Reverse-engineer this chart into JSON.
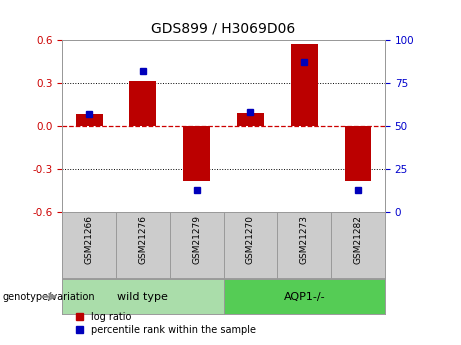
{
  "title": "GDS899 / H3069D06",
  "samples": [
    "GSM21266",
    "GSM21276",
    "GSM21279",
    "GSM21270",
    "GSM21273",
    "GSM21282"
  ],
  "log_ratios": [
    0.08,
    0.31,
    -0.38,
    0.09,
    0.57,
    -0.38
  ],
  "percentile_ranks": [
    57,
    82,
    13,
    58,
    87,
    13
  ],
  "ylim_left": [
    -0.6,
    0.6
  ],
  "ylim_right": [
    0,
    100
  ],
  "yticks_left": [
    -0.6,
    -0.3,
    0.0,
    0.3,
    0.6
  ],
  "yticks_right": [
    0,
    25,
    50,
    75,
    100
  ],
  "bar_color": "#BB0000",
  "dot_color": "#0000BB",
  "zero_line_color": "#CC0000",
  "grid_color": "#000000",
  "genotype_groups": [
    {
      "label": "wild type",
      "color": "#AADDAA",
      "start": 0,
      "end": 3
    },
    {
      "label": "AQP1-/-",
      "color": "#55CC55",
      "start": 3,
      "end": 6
    }
  ],
  "genotype_label": "genotype/variation",
  "legend_items": [
    {
      "label": "log ratio",
      "color": "#BB0000"
    },
    {
      "label": "percentile rank within the sample",
      "color": "#0000BB"
    }
  ],
  "tick_label_box_color": "#CCCCCC",
  "tick_label_box_edge": "#999999",
  "left_axis_color": "#CC0000",
  "right_axis_color": "#0000CC",
  "bar_width": 0.5,
  "dot_size": 5
}
